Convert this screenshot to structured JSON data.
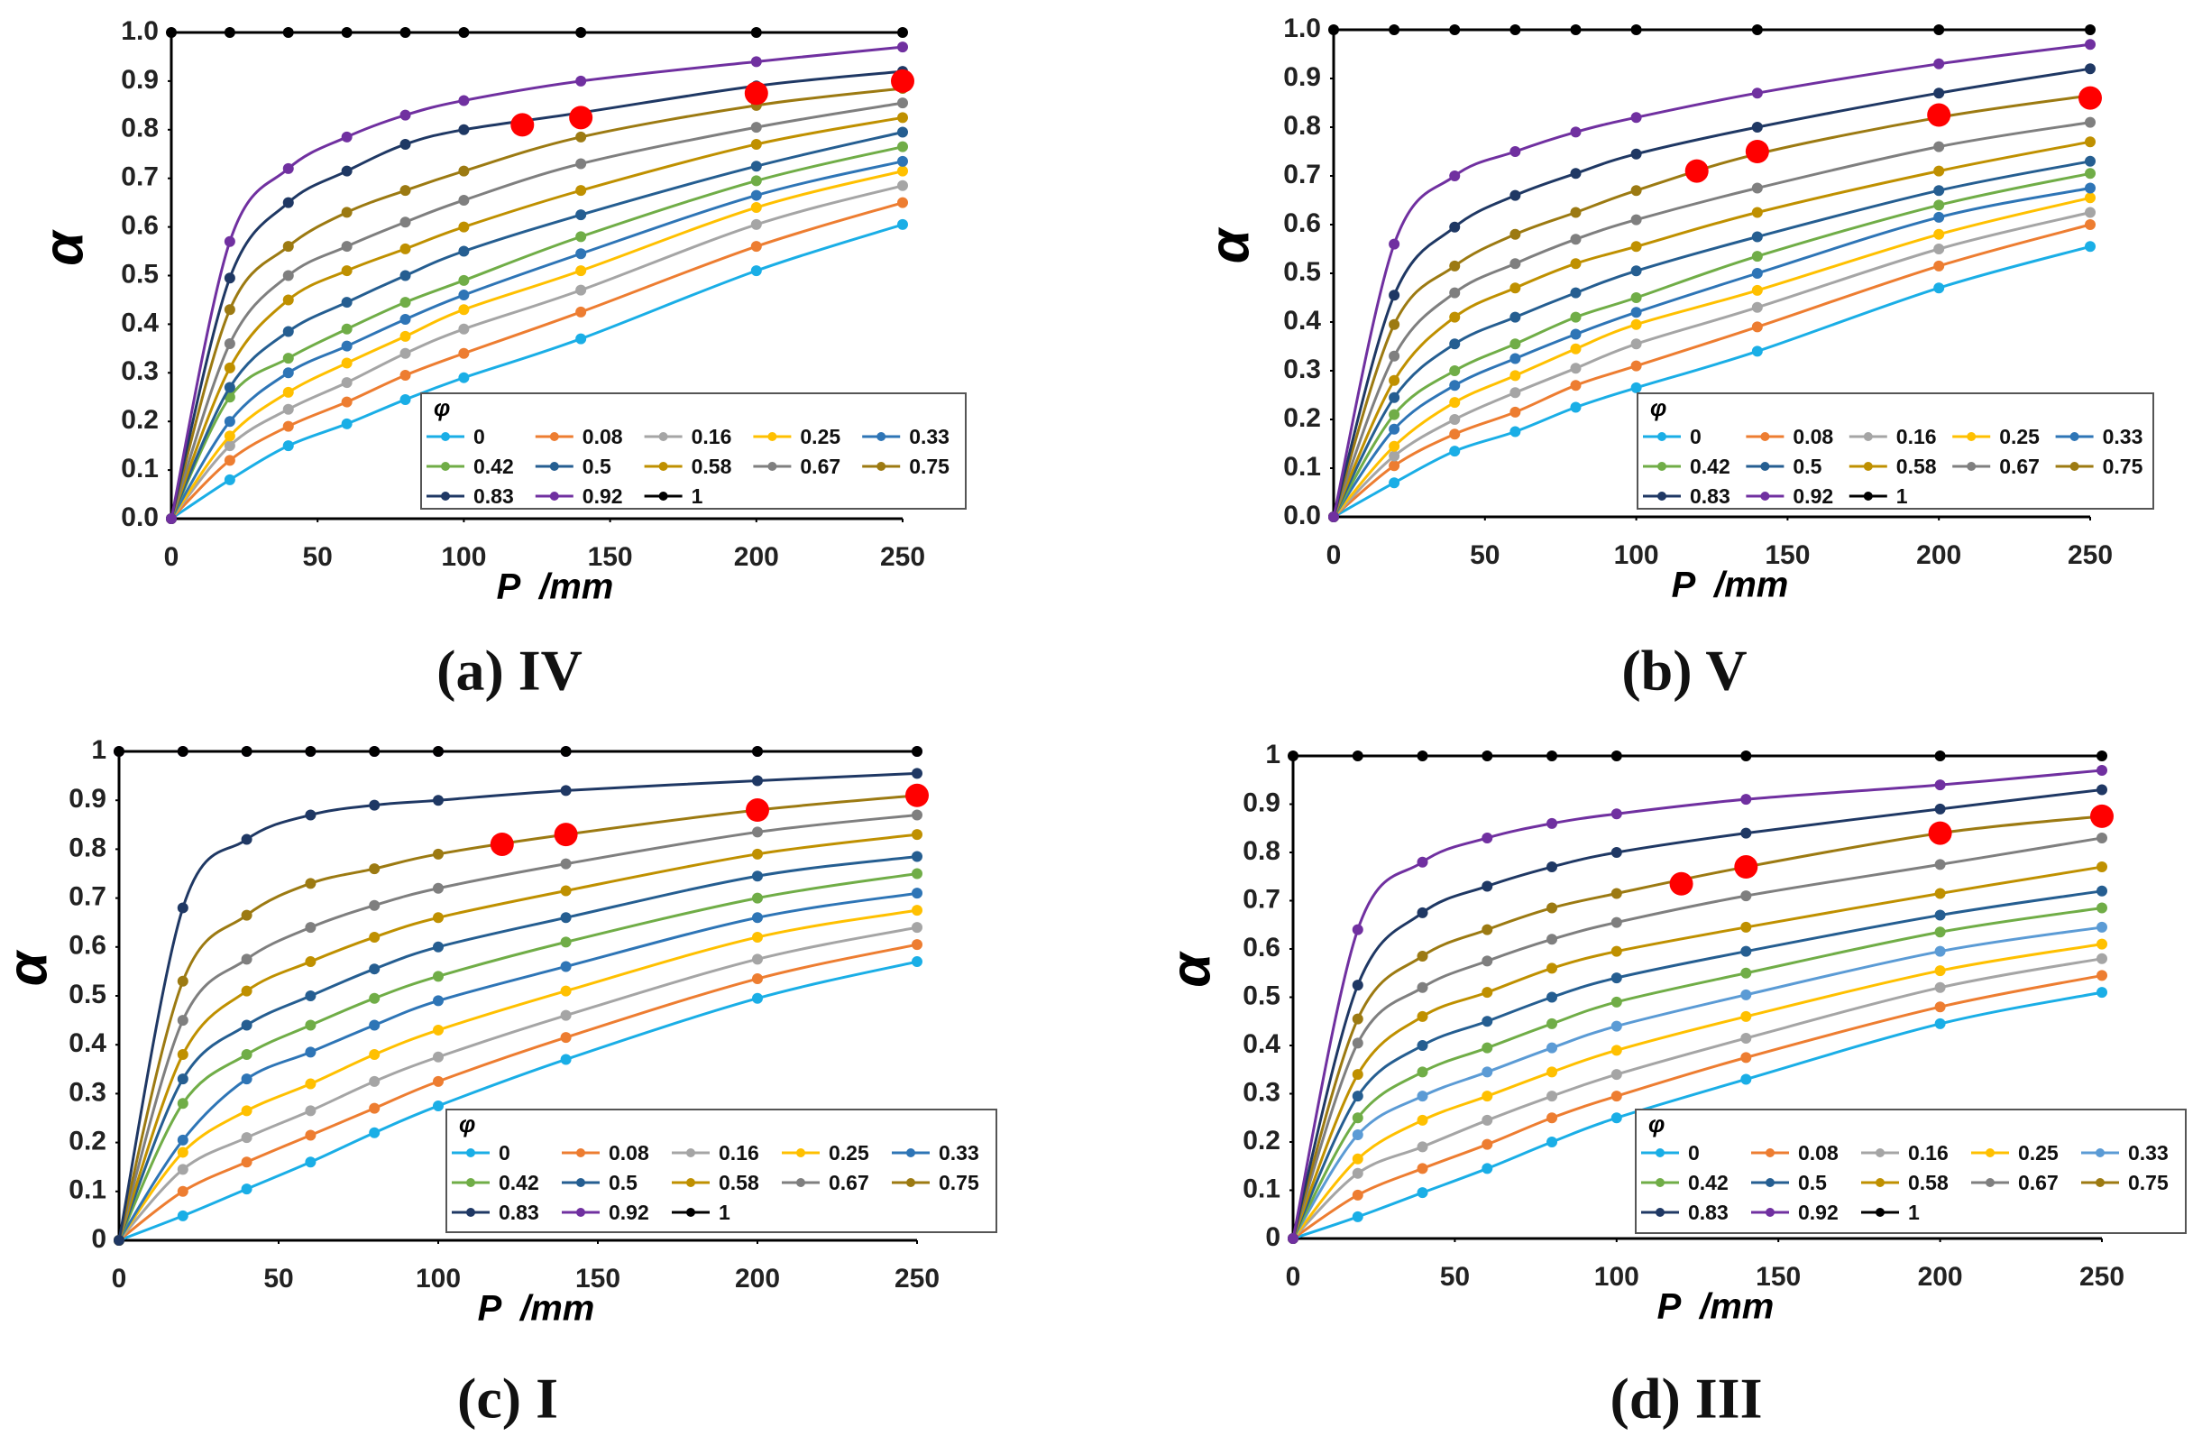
{
  "chart_data": [
    {
      "type": "line",
      "caption": "(a) IV",
      "ylabel": "α",
      "xlabel": "P  /mm",
      "legend_title": "φ",
      "x": [
        0,
        20,
        40,
        60,
        80,
        100,
        140,
        200,
        250
      ],
      "xlim": [
        0,
        250
      ],
      "xticks": [
        0,
        50,
        100,
        150,
        200,
        250
      ],
      "ylim": [
        0,
        1
      ],
      "yticks": [
        {
          "value": 0,
          "label": "0.0"
        },
        0.1,
        0.2,
        0.3,
        0.4,
        0.5,
        0.6,
        0.7,
        0.8,
        0.9,
        {
          "value": 1,
          "label": "1.0"
        }
      ],
      "grid": false,
      "legend": "lower right",
      "series": [
        {
          "name": "0",
          "color": "#1aaee6",
          "values": [
            0,
            0.08,
            0.15,
            0.195,
            0.245,
            0.29,
            0.37,
            0.51,
            0.605
          ]
        },
        {
          "name": "0.08",
          "color": "#ed7d31",
          "values": [
            0,
            0.12,
            0.19,
            0.24,
            0.295,
            0.34,
            0.425,
            0.56,
            0.65
          ]
        },
        {
          "name": "0.16",
          "color": "#a5a5a5",
          "values": [
            0,
            0.15,
            0.225,
            0.28,
            0.34,
            0.39,
            0.47,
            0.605,
            0.685
          ]
        },
        {
          "name": "0.25",
          "color": "#ffc000",
          "values": [
            0,
            0.17,
            0.26,
            0.32,
            0.375,
            0.43,
            0.51,
            0.64,
            0.715
          ]
        },
        {
          "name": "0.33",
          "color": "#2e75b6",
          "values": [
            0,
            0.2,
            0.3,
            0.355,
            0.41,
            0.46,
            0.545,
            0.665,
            0.735
          ]
        },
        {
          "name": "0.42",
          "color": "#70ad47",
          "values": [
            0,
            0.25,
            0.33,
            0.39,
            0.445,
            0.49,
            0.58,
            0.695,
            0.765
          ]
        },
        {
          "name": "0.5",
          "color": "#255e91",
          "values": [
            0,
            0.27,
            0.385,
            0.445,
            0.5,
            0.55,
            0.625,
            0.725,
            0.795
          ]
        },
        {
          "name": "0.58",
          "color": "#bf9000",
          "values": [
            0,
            0.31,
            0.45,
            0.51,
            0.555,
            0.6,
            0.675,
            0.77,
            0.825
          ]
        },
        {
          "name": "0.67",
          "color": "#7f7f7f",
          "values": [
            0,
            0.36,
            0.5,
            0.56,
            0.61,
            0.655,
            0.73,
            0.805,
            0.855
          ]
        },
        {
          "name": "0.75",
          "color": "#9c7a12",
          "values": [
            0,
            0.43,
            0.56,
            0.63,
            0.675,
            0.715,
            0.785,
            0.85,
            0.885
          ]
        },
        {
          "name": "0.83",
          "color": "#1f3864",
          "values": [
            0,
            0.495,
            0.65,
            0.715,
            0.77,
            0.8,
            0.835,
            0.89,
            0.92
          ]
        },
        {
          "name": "0.92",
          "color": "#7030a0",
          "values": [
            0,
            0.57,
            0.72,
            0.785,
            0.83,
            0.86,
            0.9,
            0.94,
            0.97
          ]
        },
        {
          "name": "1",
          "color": "#000000",
          "values": [
            1,
            1,
            1,
            1,
            1,
            1,
            1,
            1,
            1
          ]
        }
      ],
      "points": {
        "color": "#ff0000",
        "x": [
          120,
          140,
          200,
          250
        ],
        "values": [
          0.81,
          0.825,
          0.875,
          0.9
        ]
      }
    },
    {
      "type": "line",
      "caption": "(b) V",
      "ylabel": "α",
      "xlabel": "P  /mm",
      "legend_title": "φ",
      "x": [
        0,
        20,
        40,
        60,
        80,
        100,
        140,
        200,
        250
      ],
      "xlim": [
        0,
        250
      ],
      "xticks": [
        0,
        50,
        100,
        150,
        200,
        250
      ],
      "ylim": [
        0,
        1
      ],
      "yticks": [
        {
          "value": 0,
          "label": "0.0"
        },
        0.1,
        0.2,
        0.3,
        0.4,
        0.5,
        0.6,
        0.7,
        0.8,
        0.9,
        {
          "value": 1,
          "label": "1.0"
        }
      ],
      "grid": false,
      "legend": "lower right",
      "series": [
        {
          "name": "0",
          "color": "#1aaee6",
          "values": [
            0,
            0.07,
            0.135,
            0.175,
            0.225,
            0.265,
            0.34,
            0.47,
            0.555
          ]
        },
        {
          "name": "0.08",
          "color": "#ed7d31",
          "values": [
            0,
            0.105,
            0.17,
            0.215,
            0.27,
            0.31,
            0.39,
            0.515,
            0.6
          ]
        },
        {
          "name": "0.16",
          "color": "#a5a5a5",
          "values": [
            0,
            0.125,
            0.2,
            0.255,
            0.305,
            0.355,
            0.43,
            0.55,
            0.625
          ]
        },
        {
          "name": "0.25",
          "color": "#ffc000",
          "values": [
            0,
            0.145,
            0.235,
            0.29,
            0.345,
            0.395,
            0.465,
            0.58,
            0.655
          ]
        },
        {
          "name": "0.33",
          "color": "#2e75b6",
          "values": [
            0,
            0.18,
            0.27,
            0.325,
            0.375,
            0.42,
            0.5,
            0.615,
            0.675
          ]
        },
        {
          "name": "0.42",
          "color": "#70ad47",
          "values": [
            0,
            0.21,
            0.3,
            0.355,
            0.41,
            0.45,
            0.535,
            0.64,
            0.705
          ]
        },
        {
          "name": "0.5",
          "color": "#255e91",
          "values": [
            0,
            0.245,
            0.355,
            0.41,
            0.46,
            0.505,
            0.575,
            0.67,
            0.73
          ]
        },
        {
          "name": "0.58",
          "color": "#bf9000",
          "values": [
            0,
            0.28,
            0.41,
            0.47,
            0.52,
            0.555,
            0.625,
            0.71,
            0.77
          ]
        },
        {
          "name": "0.67",
          "color": "#7f7f7f",
          "values": [
            0,
            0.33,
            0.46,
            0.52,
            0.57,
            0.61,
            0.675,
            0.76,
            0.81
          ]
        },
        {
          "name": "0.75",
          "color": "#9c7a12",
          "values": [
            0,
            0.395,
            0.515,
            0.58,
            0.625,
            0.67,
            0.745,
            0.82,
            0.865
          ]
        },
        {
          "name": "0.83",
          "color": "#1f3864",
          "values": [
            0,
            0.455,
            0.595,
            0.66,
            0.705,
            0.745,
            0.8,
            0.87,
            0.92
          ]
        },
        {
          "name": "0.92",
          "color": "#7030a0",
          "values": [
            0,
            0.56,
            0.7,
            0.75,
            0.79,
            0.82,
            0.87,
            0.93,
            0.97
          ]
        },
        {
          "name": "1",
          "color": "#000000",
          "values": [
            1,
            1,
            1,
            1,
            1,
            1,
            1,
            1,
            1
          ]
        }
      ],
      "points": {
        "color": "#ff0000",
        "x": [
          120,
          140,
          200,
          250
        ],
        "values": [
          0.71,
          0.75,
          0.825,
          0.86
        ]
      }
    },
    {
      "type": "line",
      "caption": "(c) I",
      "ylabel": "α",
      "xlabel": "P  /mm",
      "legend_title": "φ",
      "x": [
        0,
        20,
        40,
        60,
        80,
        100,
        140,
        200,
        250
      ],
      "xlim": [
        0,
        250
      ],
      "xticks": [
        0,
        50,
        100,
        150,
        200,
        250
      ],
      "ylim": [
        0,
        1
      ],
      "yticks": [
        0,
        0.1,
        0.2,
        0.3,
        0.4,
        0.5,
        0.6,
        0.7,
        0.8,
        0.9,
        1
      ],
      "grid": false,
      "legend": "lower right",
      "series": [
        {
          "name": "0",
          "color": "#1aaee6",
          "values": [
            0,
            0.05,
            0.105,
            0.16,
            0.22,
            0.275,
            0.37,
            0.495,
            0.57
          ]
        },
        {
          "name": "0.08",
          "color": "#ed7d31",
          "values": [
            0,
            0.1,
            0.16,
            0.215,
            0.27,
            0.325,
            0.415,
            0.535,
            0.605
          ]
        },
        {
          "name": "0.16",
          "color": "#a5a5a5",
          "values": [
            0,
            0.145,
            0.21,
            0.265,
            0.325,
            0.375,
            0.46,
            0.575,
            0.64
          ]
        },
        {
          "name": "0.25",
          "color": "#ffc000",
          "values": [
            0,
            0.18,
            0.265,
            0.32,
            0.38,
            0.43,
            0.51,
            0.62,
            0.675
          ]
        },
        {
          "name": "0.33",
          "color": "#2e75b6",
          "values": [
            0,
            0.205,
            0.33,
            0.385,
            0.44,
            0.49,
            0.56,
            0.66,
            0.71
          ]
        },
        {
          "name": "0.42",
          "color": "#70ad47",
          "values": [
            0,
            0.28,
            0.38,
            0.44,
            0.495,
            0.54,
            0.61,
            0.7,
            0.75
          ]
        },
        {
          "name": "0.5",
          "color": "#255e91",
          "values": [
            0,
            0.33,
            0.44,
            0.5,
            0.555,
            0.6,
            0.66,
            0.745,
            0.785
          ]
        },
        {
          "name": "0.58",
          "color": "#bf9000",
          "values": [
            0,
            0.38,
            0.51,
            0.57,
            0.62,
            0.66,
            0.715,
            0.79,
            0.83
          ]
        },
        {
          "name": "0.67",
          "color": "#7f7f7f",
          "values": [
            0,
            0.45,
            0.575,
            0.64,
            0.685,
            0.72,
            0.77,
            0.835,
            0.87
          ]
        },
        {
          "name": "0.75",
          "color": "#9c7a12",
          "values": [
            0,
            0.53,
            0.665,
            0.73,
            0.76,
            0.79,
            0.83,
            0.88,
            0.91
          ]
        },
        {
          "name": "0.83",
          "color": "#1f3864",
          "values": [
            0,
            0.68,
            0.82,
            0.87,
            0.89,
            0.9,
            0.92,
            0.94,
            0.955
          ]
        },
        {
          "name": "0.92",
          "color": "#7030a0",
          "values": [
            1,
            1,
            1,
            1,
            1,
            1,
            1,
            1,
            1
          ]
        },
        {
          "name": "1",
          "color": "#000000",
          "values": [
            1,
            1,
            1,
            1,
            1,
            1,
            1,
            1,
            1
          ]
        }
      ],
      "points": {
        "color": "#ff0000",
        "x": [
          120,
          140,
          200,
          250
        ],
        "values": [
          0.81,
          0.83,
          0.88,
          0.91
        ]
      }
    },
    {
      "type": "line",
      "caption": "(d) III",
      "ylabel": "α",
      "xlabel": "P  /mm",
      "legend_title": "φ",
      "x": [
        0,
        20,
        40,
        60,
        80,
        100,
        140,
        200,
        250
      ],
      "xlim": [
        0,
        250
      ],
      "xticks": [
        0,
        50,
        100,
        150,
        200,
        250
      ],
      "ylim": [
        0,
        1
      ],
      "yticks": [
        0,
        0.1,
        0.2,
        0.3,
        0.4,
        0.5,
        0.6,
        0.7,
        0.8,
        0.9,
        1
      ],
      "grid": false,
      "legend": "lower right",
      "series": [
        {
          "name": "0",
          "color": "#1aaee6",
          "values": [
            0,
            0.045,
            0.095,
            0.145,
            0.2,
            0.25,
            0.33,
            0.445,
            0.51
          ]
        },
        {
          "name": "0.08",
          "color": "#ed7d31",
          "values": [
            0,
            0.09,
            0.145,
            0.195,
            0.25,
            0.295,
            0.375,
            0.48,
            0.545
          ]
        },
        {
          "name": "0.16",
          "color": "#a5a5a5",
          "values": [
            0,
            0.135,
            0.19,
            0.245,
            0.295,
            0.34,
            0.415,
            0.52,
            0.58
          ]
        },
        {
          "name": "0.25",
          "color": "#ffc000",
          "values": [
            0,
            0.165,
            0.245,
            0.295,
            0.345,
            0.39,
            0.46,
            0.555,
            0.61
          ]
        },
        {
          "name": "0.33",
          "color": "#5b9bd5",
          "values": [
            0,
            0.215,
            0.295,
            0.345,
            0.395,
            0.44,
            0.505,
            0.595,
            0.645
          ]
        },
        {
          "name": "0.42",
          "color": "#70ad47",
          "values": [
            0,
            0.25,
            0.345,
            0.395,
            0.445,
            0.49,
            0.55,
            0.635,
            0.685
          ]
        },
        {
          "name": "0.5",
          "color": "#255e91",
          "values": [
            0,
            0.295,
            0.4,
            0.45,
            0.5,
            0.54,
            0.595,
            0.67,
            0.72
          ]
        },
        {
          "name": "0.58",
          "color": "#bf9000",
          "values": [
            0,
            0.34,
            0.46,
            0.51,
            0.56,
            0.595,
            0.645,
            0.715,
            0.77
          ]
        },
        {
          "name": "0.67",
          "color": "#7f7f7f",
          "values": [
            0,
            0.405,
            0.52,
            0.575,
            0.62,
            0.655,
            0.71,
            0.775,
            0.83
          ]
        },
        {
          "name": "0.75",
          "color": "#9c7a12",
          "values": [
            0,
            0.455,
            0.585,
            0.64,
            0.685,
            0.715,
            0.77,
            0.84,
            0.875
          ]
        },
        {
          "name": "0.83",
          "color": "#1f3864",
          "values": [
            0,
            0.525,
            0.675,
            0.73,
            0.77,
            0.8,
            0.84,
            0.89,
            0.93
          ]
        },
        {
          "name": "0.92",
          "color": "#7030a0",
          "values": [
            0,
            0.64,
            0.78,
            0.83,
            0.86,
            0.88,
            0.91,
            0.94,
            0.97
          ]
        },
        {
          "name": "1",
          "color": "#000000",
          "values": [
            1,
            1,
            1,
            1,
            1,
            1,
            1,
            1,
            1
          ]
        }
      ],
      "points": {
        "color": "#ff0000",
        "x": [
          120,
          140,
          200,
          250
        ],
        "values": [
          0.735,
          0.77,
          0.84,
          0.875
        ]
      }
    }
  ]
}
